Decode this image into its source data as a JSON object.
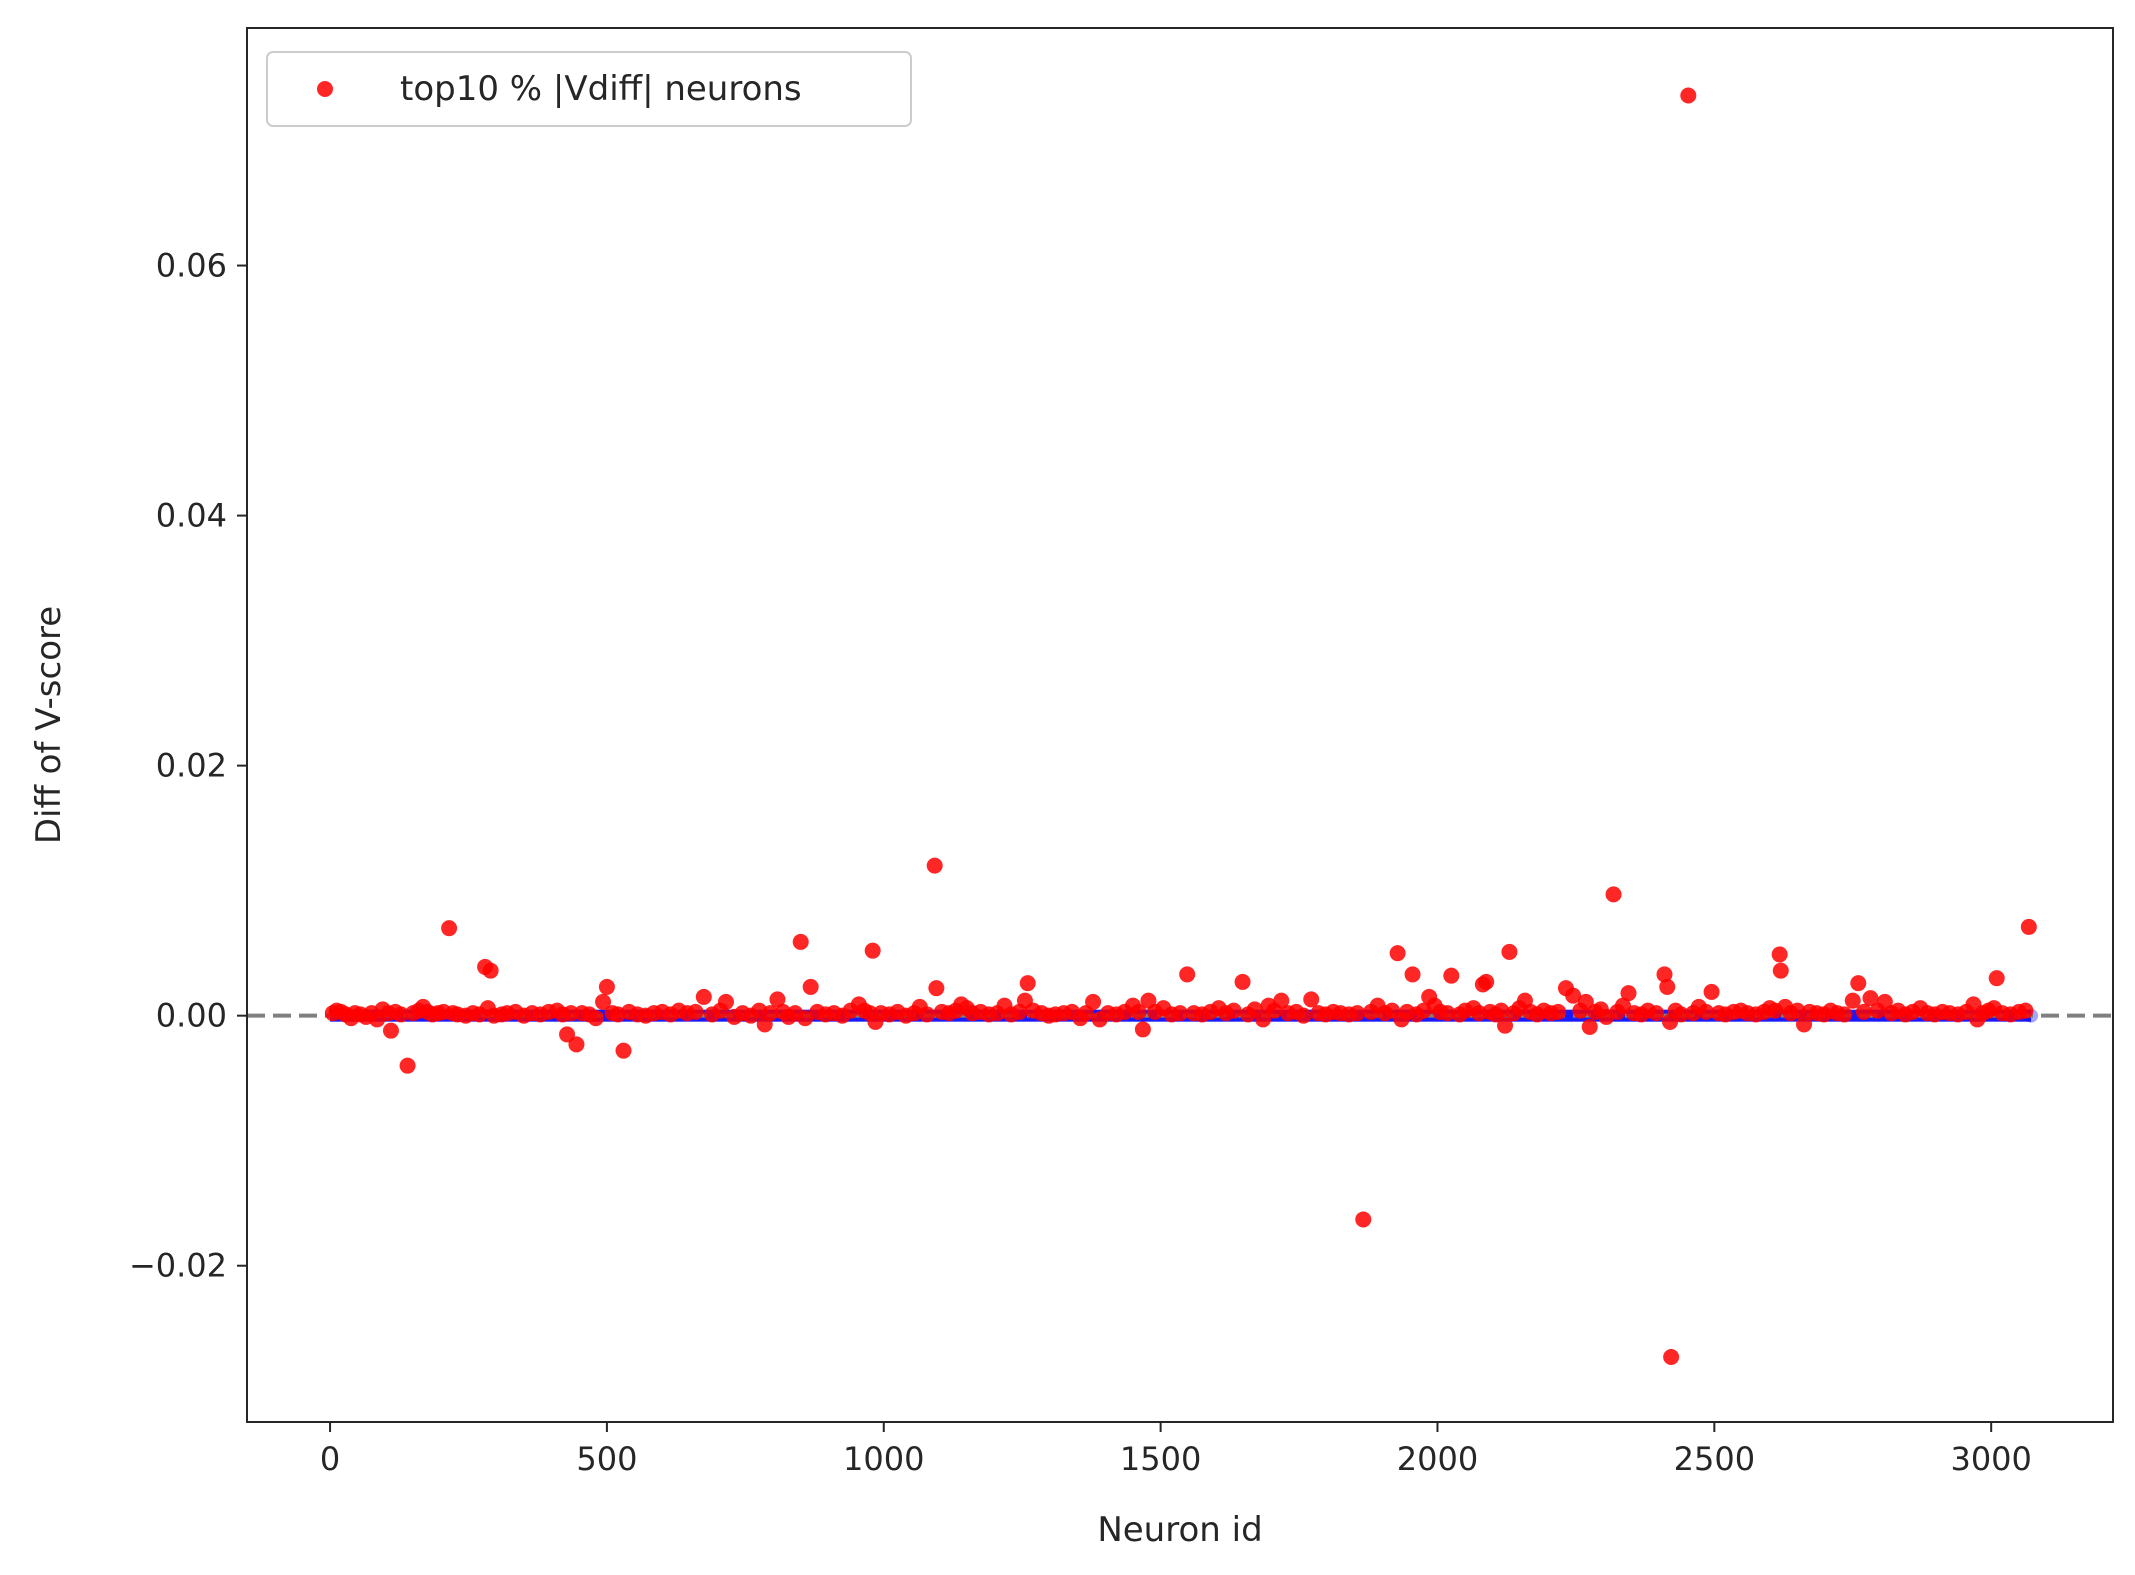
{
  "chart_data": {
    "type": "scatter",
    "title": "",
    "xlabel": "Neuron id",
    "ylabel": "Diff of V-score",
    "xlim": [
      -150,
      3220
    ],
    "ylim": [
      -0.0325,
      0.079
    ],
    "x_ticks": [
      0,
      500,
      1000,
      1500,
      2000,
      2500,
      3000
    ],
    "x_tick_labels": [
      "0",
      "500",
      "1000",
      "1500",
      "2000",
      "2500",
      "3000"
    ],
    "y_ticks": [
      -0.02,
      0.0,
      0.02,
      0.04,
      0.06
    ],
    "y_tick_labels": [
      "−0.02",
      "0.00",
      "0.02",
      "0.04",
      "0.06"
    ],
    "grid": false,
    "reference_line": {
      "y": 0.0,
      "style": "dashed",
      "color": "#808080"
    },
    "legend": {
      "placement": "top-left",
      "entries": [
        {
          "label": "top10 % |Vdiff| neurons",
          "color": "#ff0000"
        }
      ]
    },
    "series": [
      {
        "role": "all-neurons",
        "color": "#0000ff",
        "x_range": [
          0,
          3072
        ],
        "y_approx": 0.0
      },
      {
        "name": "top10 % |Vdiff| neurons",
        "color": "#ff0000",
        "points": [
          [
            5,
            0.0002
          ],
          [
            12,
            0.0004
          ],
          [
            20,
            0.0003
          ],
          [
            28,
            0.0001
          ],
          [
            38,
            -0.0002
          ],
          [
            45,
            0.0002
          ],
          [
            55,
            0.0001
          ],
          [
            65,
            -0.0001
          ],
          [
            75,
            0.0002
          ],
          [
            85,
            -0.0003
          ],
          [
            95,
            0.0005
          ],
          [
            105,
            0.0002
          ],
          [
            110,
            -0.0012
          ],
          [
            118,
            0.0003
          ],
          [
            128,
            0.0001
          ],
          [
            140,
            -0.004
          ],
          [
            150,
            0.0002
          ],
          [
            160,
            0.0004
          ],
          [
            168,
            0.0007
          ],
          [
            176,
            0.0003
          ],
          [
            185,
            0.0001
          ],
          [
            195,
            0.0002
          ],
          [
            205,
            0.0003
          ],
          [
            215,
            0.007
          ],
          [
            222,
            0.0002
          ],
          [
            230,
            0.0001
          ],
          [
            245,
            0.0
          ],
          [
            258,
            0.0002
          ],
          [
            270,
            0.0001
          ],
          [
            280,
            0.0039
          ],
          [
            285,
            0.0006
          ],
          [
            290,
            0.0036
          ],
          [
            296,
            0.0
          ],
          [
            310,
            0.0001
          ],
          [
            320,
            0.0002
          ],
          [
            335,
            0.0003
          ],
          [
            350,
            0.0
          ],
          [
            365,
            0.0002
          ],
          [
            380,
            0.0001
          ],
          [
            395,
            0.0003
          ],
          [
            410,
            0.0004
          ],
          [
            420,
            0.0001
          ],
          [
            428,
            -0.0015
          ],
          [
            435,
            0.0002
          ],
          [
            445,
            -0.0023
          ],
          [
            455,
            0.0002
          ],
          [
            468,
            0.0001
          ],
          [
            480,
            -0.0002
          ],
          [
            493,
            0.0011
          ],
          [
            500,
            0.0023
          ],
          [
            510,
            0.0002
          ],
          [
            520,
            0.0001
          ],
          [
            530,
            -0.0028
          ],
          [
            540,
            0.0003
          ],
          [
            555,
            0.0001
          ],
          [
            570,
            0.0
          ],
          [
            585,
            0.0002
          ],
          [
            600,
            0.0003
          ],
          [
            615,
            0.0001
          ],
          [
            630,
            0.0004
          ],
          [
            645,
            0.0002
          ],
          [
            660,
            0.0003
          ],
          [
            675,
            0.0015
          ],
          [
            690,
            0.0001
          ],
          [
            705,
            0.0004
          ],
          [
            715,
            0.0011
          ],
          [
            730,
            -0.0001
          ],
          [
            745,
            0.0002
          ],
          [
            760,
            0.0
          ],
          [
            775,
            0.0004
          ],
          [
            785,
            -0.0007
          ],
          [
            795,
            0.0002
          ],
          [
            808,
            0.0013
          ],
          [
            818,
            0.0003
          ],
          [
            828,
            -0.0001
          ],
          [
            840,
            0.0002
          ],
          [
            850,
            0.0059
          ],
          [
            858,
            -0.0002
          ],
          [
            868,
            0.0023
          ],
          [
            880,
            0.0003
          ],
          [
            895,
            0.0001
          ],
          [
            910,
            0.0002
          ],
          [
            925,
            0.0
          ],
          [
            940,
            0.0004
          ],
          [
            955,
            0.0009
          ],
          [
            965,
            0.0004
          ],
          [
            975,
            0.0002
          ],
          [
            980,
            0.0052
          ],
          [
            985,
            -0.0005
          ],
          [
            995,
            0.0002
          ],
          [
            1010,
            0.0001
          ],
          [
            1025,
            0.0003
          ],
          [
            1040,
            0.0
          ],
          [
            1055,
            0.0002
          ],
          [
            1065,
            0.0007
          ],
          [
            1078,
            0.0001
          ],
          [
            1092,
            0.012
          ],
          [
            1095,
            0.0022
          ],
          [
            1105,
            0.0003
          ],
          [
            1118,
            0.0002
          ],
          [
            1130,
            0.0004
          ],
          [
            1140,
            0.0009
          ],
          [
            1150,
            0.0006
          ],
          [
            1160,
            0.0002
          ],
          [
            1175,
            0.0003
          ],
          [
            1190,
            0.0001
          ],
          [
            1205,
            0.0002
          ],
          [
            1218,
            0.0008
          ],
          [
            1230,
            0.0001
          ],
          [
            1245,
            0.0003
          ],
          [
            1255,
            0.0012
          ],
          [
            1260,
            0.0026
          ],
          [
            1270,
            0.0004
          ],
          [
            1285,
            0.0002
          ],
          [
            1298,
            0.0
          ],
          [
            1310,
            0.0001
          ],
          [
            1325,
            0.0002
          ],
          [
            1340,
            0.0003
          ],
          [
            1355,
            -0.0002
          ],
          [
            1365,
            0.0002
          ],
          [
            1378,
            0.0011
          ],
          [
            1390,
            -0.0003
          ],
          [
            1405,
            0.0002
          ],
          [
            1420,
            0.0001
          ],
          [
            1435,
            0.0003
          ],
          [
            1450,
            0.0008
          ],
          [
            1460,
            0.0003
          ],
          [
            1468,
            -0.0011
          ],
          [
            1478,
            0.0012
          ],
          [
            1490,
            0.0003
          ],
          [
            1505,
            0.0006
          ],
          [
            1520,
            0.0001
          ],
          [
            1535,
            0.0002
          ],
          [
            1548,
            0.0033
          ],
          [
            1560,
            0.0002
          ],
          [
            1575,
            0.0001
          ],
          [
            1590,
            0.0003
          ],
          [
            1605,
            0.0006
          ],
          [
            1618,
            0.0002
          ],
          [
            1632,
            0.0004
          ],
          [
            1648,
            0.0027
          ],
          [
            1658,
            0.0001
          ],
          [
            1670,
            0.0005
          ],
          [
            1685,
            -0.0003
          ],
          [
            1695,
            0.0008
          ],
          [
            1705,
            0.0004
          ],
          [
            1718,
            0.0012
          ],
          [
            1730,
            0.0002
          ],
          [
            1745,
            0.0003
          ],
          [
            1758,
            0.0
          ],
          [
            1772,
            0.0013
          ],
          [
            1785,
            0.0002
          ],
          [
            1798,
            0.0001
          ],
          [
            1812,
            0.0003
          ],
          [
            1825,
            0.0002
          ],
          [
            1840,
            0.0001
          ],
          [
            1855,
            0.0002
          ],
          [
            1866,
            -0.0163
          ],
          [
            1880,
            0.0003
          ],
          [
            1892,
            0.0008
          ],
          [
            1905,
            0.0002
          ],
          [
            1918,
            0.0004
          ],
          [
            1928,
            0.005
          ],
          [
            1935,
            -0.0003
          ],
          [
            1945,
            0.0003
          ],
          [
            1955,
            0.0033
          ],
          [
            1962,
            0.0001
          ],
          [
            1975,
            0.0004
          ],
          [
            1985,
            0.0015
          ],
          [
            1995,
            0.0008
          ],
          [
            2005,
            0.0003
          ],
          [
            2018,
            0.0002
          ],
          [
            2025,
            0.0032
          ],
          [
            2040,
            0.0001
          ],
          [
            2050,
            0.0004
          ],
          [
            2065,
            0.0006
          ],
          [
            2075,
            0.0002
          ],
          [
            2082,
            0.0025
          ],
          [
            2088,
            0.0027
          ],
          [
            2095,
            0.0003
          ],
          [
            2105,
            0.0001
          ],
          [
            2115,
            0.0004
          ],
          [
            2122,
            -0.0008
          ],
          [
            2130,
            0.0051
          ],
          [
            2138,
            0.0002
          ],
          [
            2148,
            0.0006
          ],
          [
            2158,
            0.0012
          ],
          [
            2168,
            0.0003
          ],
          [
            2180,
            0.0001
          ],
          [
            2192,
            0.0004
          ],
          [
            2205,
            0.0002
          ],
          [
            2218,
            0.0003
          ],
          [
            2232,
            0.0022
          ],
          [
            2245,
            0.0016
          ],
          [
            2258,
            0.0004
          ],
          [
            2268,
            0.0011
          ],
          [
            2275,
            -0.0009
          ],
          [
            2285,
            0.0003
          ],
          [
            2295,
            0.0005
          ],
          [
            2305,
            -0.0001
          ],
          [
            2318,
            0.0097
          ],
          [
            2325,
            0.0003
          ],
          [
            2335,
            0.0008
          ],
          [
            2345,
            0.0018
          ],
          [
            2355,
            0.0002
          ],
          [
            2368,
            0.0001
          ],
          [
            2380,
            0.0004
          ],
          [
            2395,
            0.0002
          ],
          [
            2410,
            0.0033
          ],
          [
            2415,
            0.0023
          ],
          [
            2420,
            -0.0005
          ],
          [
            2422,
            -0.0273
          ],
          [
            2430,
            0.0004
          ],
          [
            2440,
            0.0001
          ],
          [
            2453,
            0.0736
          ],
          [
            2462,
            0.0002
          ],
          [
            2472,
            0.0007
          ],
          [
            2485,
            0.0003
          ],
          [
            2495,
            0.0019
          ],
          [
            2508,
            0.0002
          ],
          [
            2520,
            0.0001
          ],
          [
            2535,
            0.0003
          ],
          [
            2548,
            0.0004
          ],
          [
            2560,
            0.0002
          ],
          [
            2575,
            0.0001
          ],
          [
            2590,
            0.0003
          ],
          [
            2600,
            0.0006
          ],
          [
            2610,
            0.0004
          ],
          [
            2618,
            0.0049
          ],
          [
            2620,
            0.0036
          ],
          [
            2628,
            0.0007
          ],
          [
            2638,
            0.0002
          ],
          [
            2650,
            0.0004
          ],
          [
            2662,
            -0.0007
          ],
          [
            2672,
            0.0003
          ],
          [
            2685,
            0.0002
          ],
          [
            2698,
            0.0001
          ],
          [
            2710,
            0.0004
          ],
          [
            2722,
            0.0002
          ],
          [
            2735,
            0.0001
          ],
          [
            2750,
            0.0012
          ],
          [
            2760,
            0.0026
          ],
          [
            2770,
            0.0003
          ],
          [
            2782,
            0.0014
          ],
          [
            2795,
            0.0004
          ],
          [
            2808,
            0.0011
          ],
          [
            2820,
            0.0002
          ],
          [
            2832,
            0.0004
          ],
          [
            2845,
            0.0001
          ],
          [
            2858,
            0.0003
          ],
          [
            2872,
            0.0006
          ],
          [
            2885,
            0.0002
          ],
          [
            2898,
            0.0001
          ],
          [
            2912,
            0.0003
          ],
          [
            2925,
            0.0002
          ],
          [
            2940,
            0.0001
          ],
          [
            2955,
            0.0003
          ],
          [
            2968,
            0.0009
          ],
          [
            2975,
            -0.0003
          ],
          [
            2985,
            0.0002
          ],
          [
            2995,
            0.0004
          ],
          [
            3005,
            0.0006
          ],
          [
            3010,
            0.003
          ],
          [
            3020,
            0.0002
          ],
          [
            3035,
            0.0001
          ],
          [
            3050,
            0.0003
          ],
          [
            3062,
            0.0004
          ],
          [
            3068,
            0.0071
          ]
        ]
      }
    ]
  }
}
